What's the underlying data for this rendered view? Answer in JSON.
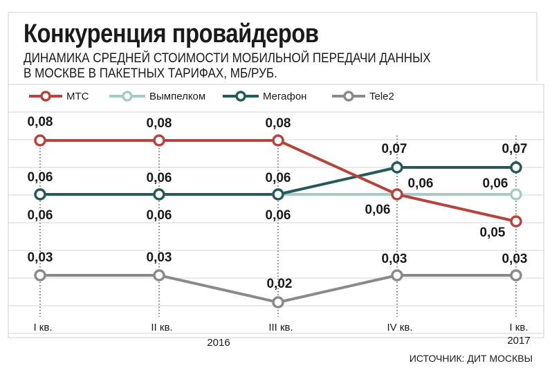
{
  "title": "Конкуренция  провайдеров",
  "subtitle_line1": "ДИНАМИКА СРЕДНЕЙ СТОИМОСТИ МОБИЛЬНОЙ ПЕРЕДАЧИ ДАННЫХ",
  "subtitle_line2": "В МОСКВЕ В ПАКЕТНЫХ ТАРИФАХ, МБ/РУБ.",
  "source": "ИСТОЧНИК: ДИТ МОСКВЫ",
  "chart_data": {
    "type": "line",
    "categories": [
      "I кв.",
      "II кв.",
      "III кв.",
      "IV кв.",
      "I кв."
    ],
    "year_labels": [
      "2016",
      "2017"
    ],
    "series": [
      {
        "name": "МТС",
        "color": "#b5453c",
        "values": [
          0.08,
          0.08,
          0.08,
          0.06,
          0.05
        ]
      },
      {
        "name": "Вымпелком",
        "color": "#a5cbc4",
        "values": [
          0.06,
          0.06,
          0.06,
          0.06,
          0.06
        ]
      },
      {
        "name": "Мегафон",
        "color": "#245a5a",
        "values": [
          0.06,
          0.06,
          0.06,
          0.07,
          0.07
        ]
      },
      {
        "name": "Tele2",
        "color": "#8a8a8a",
        "values": [
          0.03,
          0.03,
          0.02,
          0.03,
          0.03
        ]
      }
    ],
    "value_labels": [
      {
        "text": "0,08",
        "series": "МТС",
        "point": 0
      },
      {
        "text": "0,08",
        "series": "МТС",
        "point": 1
      },
      {
        "text": "0,08",
        "series": "МТС",
        "point": 2
      },
      {
        "text": "0,06",
        "series": "МТС",
        "point": 3
      },
      {
        "text": "0,05",
        "series": "МТС",
        "point": 4
      },
      {
        "text": "0,06",
        "series": "Вымпелком",
        "point": 0
      },
      {
        "text": "0,06",
        "series": "Вымпелком",
        "point": 1
      },
      {
        "text": "0,06",
        "series": "Вымпелком",
        "point": 2
      },
      {
        "text": "0,06",
        "series": "Вымпелком",
        "point": 3
      },
      {
        "text": "0,06",
        "series": "Вымпелком",
        "point": 4
      },
      {
        "text": "0,06",
        "series": "Мегафон",
        "point": 0
      },
      {
        "text": "0,06",
        "series": "Мегафон",
        "point": 1
      },
      {
        "text": "0,06",
        "series": "Мегафон",
        "point": 2
      },
      {
        "text": "0,07",
        "series": "Мегафон",
        "point": 3
      },
      {
        "text": "0,07",
        "series": "Мегафон",
        "point": 4
      },
      {
        "text": "0,03",
        "series": "Tele2",
        "point": 0
      },
      {
        "text": "0,03",
        "series": "Tele2",
        "point": 1
      },
      {
        "text": "0,02",
        "series": "Tele2",
        "point": 2
      },
      {
        "text": "0,03",
        "series": "Tele2",
        "point": 3
      },
      {
        "text": "0,03",
        "series": "Tele2",
        "point": 4
      }
    ],
    "legend_position": "top",
    "grid": true
  }
}
